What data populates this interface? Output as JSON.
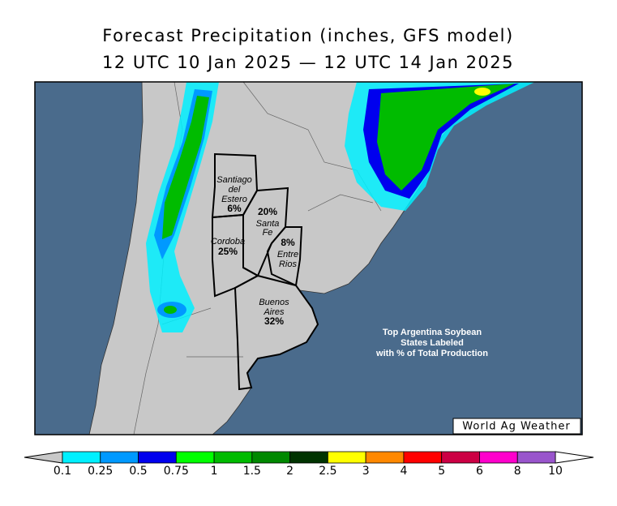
{
  "header": {
    "title": "Forecast Precipitation (inches, GFS model)",
    "subtitle": "12 UTC 10 Jan 2025 — 12 UTC 14 Jan 2025"
  },
  "provinces": [
    {
      "lines": [
        "Santiago",
        "del",
        "Estero"
      ],
      "share": "6%"
    },
    {
      "lines": [
        "Santa",
        "Fe"
      ],
      "share": "20%"
    },
    {
      "lines": [
        "Cordoba"
      ],
      "share": "25%"
    },
    {
      "lines": [
        "Entre",
        "Rios"
      ],
      "share": "8%"
    },
    {
      "lines": [
        "Buenos",
        "Aires"
      ],
      "share": "32%"
    }
  ],
  "annotation": [
    "Top Argentina Soybean",
    "States Labeled",
    "with % of Total Production"
  ],
  "credit": "World Ag Weather",
  "colorbar": {
    "ticks": [
      0.1,
      0.25,
      0.5,
      0.75,
      1,
      1.5,
      2,
      2.5,
      3,
      4,
      5,
      6,
      8,
      10
    ],
    "colors": [
      "#00f0ff",
      "#0099ff",
      "#0000ee",
      "#00ff00",
      "#00bb00",
      "#008800",
      "#003300",
      "#ffff00",
      "#ff8800",
      "#ff0000",
      "#cc0044",
      "#ff00cc",
      "#9955cc"
    ]
  }
}
